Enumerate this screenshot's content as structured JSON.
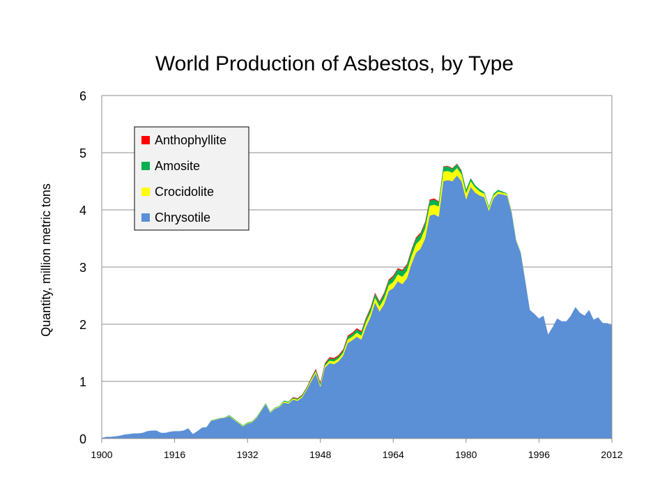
{
  "chart_data": {
    "type": "area",
    "stacked": true,
    "title": "World Production of Asbestos, by Type",
    "xlabel": "",
    "ylabel": "Quantity, million metric tons",
    "xlim": [
      1900,
      2012
    ],
    "ylim": [
      0,
      6
    ],
    "x_ticks": [
      1900,
      1916,
      1932,
      1948,
      1964,
      1980,
      1996,
      2012
    ],
    "y_ticks": [
      0,
      1,
      2,
      3,
      4,
      5,
      6
    ],
    "grid": "horizontal",
    "legend_position": "top-left",
    "x": [
      1900,
      1901,
      1902,
      1903,
      1904,
      1905,
      1906,
      1907,
      1908,
      1909,
      1910,
      1911,
      1912,
      1913,
      1914,
      1915,
      1916,
      1917,
      1918,
      1919,
      1920,
      1921,
      1922,
      1923,
      1924,
      1925,
      1926,
      1927,
      1928,
      1929,
      1930,
      1931,
      1932,
      1933,
      1934,
      1935,
      1936,
      1937,
      1938,
      1939,
      1940,
      1941,
      1942,
      1943,
      1944,
      1945,
      1946,
      1947,
      1948,
      1949,
      1950,
      1951,
      1952,
      1953,
      1954,
      1955,
      1956,
      1957,
      1958,
      1959,
      1960,
      1961,
      1962,
      1963,
      1964,
      1965,
      1966,
      1967,
      1968,
      1969,
      1970,
      1971,
      1972,
      1973,
      1974,
      1975,
      1976,
      1977,
      1978,
      1979,
      1980,
      1981,
      1982,
      1983,
      1984,
      1985,
      1986,
      1987,
      1988,
      1989,
      1990,
      1991,
      1992,
      1993,
      1994,
      1995,
      1996,
      1997,
      1998,
      1999,
      2000,
      2001,
      2002,
      2003,
      2004,
      2005,
      2006,
      2007,
      2008,
      2009,
      2010,
      2011,
      2012
    ],
    "series": [
      {
        "name": "Chrysotile",
        "color": "#5B8FD6",
        "values": [
          0.01,
          0.03,
          0.03,
          0.04,
          0.05,
          0.07,
          0.08,
          0.09,
          0.09,
          0.1,
          0.13,
          0.14,
          0.14,
          0.1,
          0.1,
          0.12,
          0.13,
          0.13,
          0.14,
          0.18,
          0.08,
          0.13,
          0.19,
          0.2,
          0.31,
          0.33,
          0.35,
          0.36,
          0.39,
          0.33,
          0.27,
          0.21,
          0.26,
          0.28,
          0.36,
          0.48,
          0.6,
          0.45,
          0.52,
          0.55,
          0.63,
          0.61,
          0.68,
          0.66,
          0.72,
          0.85,
          1.0,
          1.14,
          0.9,
          1.24,
          1.32,
          1.3,
          1.35,
          1.45,
          1.67,
          1.72,
          1.78,
          1.73,
          1.95,
          2.12,
          2.38,
          2.22,
          2.35,
          2.58,
          2.63,
          2.75,
          2.7,
          2.8,
          3.05,
          3.25,
          3.32,
          3.5,
          3.9,
          3.92,
          3.88,
          4.5,
          4.52,
          4.5,
          4.6,
          4.5,
          4.18,
          4.4,
          4.3,
          4.25,
          4.22,
          3.98,
          4.2,
          4.28,
          4.27,
          4.25,
          3.95,
          3.45,
          3.25,
          2.75,
          2.25,
          2.18,
          2.1,
          2.15,
          1.82,
          1.95,
          2.1,
          2.05,
          2.05,
          2.15,
          2.3,
          2.2,
          2.15,
          2.25,
          2.08,
          2.12,
          2.02,
          2.02,
          1.98
        ]
      },
      {
        "name": "Crocidolite",
        "color": "#FFFF00",
        "values": [
          0,
          0,
          0,
          0,
          0,
          0,
          0,
          0,
          0,
          0,
          0,
          0,
          0,
          0,
          0,
          0,
          0,
          0,
          0,
          0,
          0,
          0,
          0,
          0,
          0.005,
          0.005,
          0.005,
          0.005,
          0.01,
          0.01,
          0.01,
          0.01,
          0.01,
          0.01,
          0.01,
          0.01,
          0.01,
          0.01,
          0.01,
          0.01,
          0.02,
          0.02,
          0.02,
          0.02,
          0.02,
          0.02,
          0.03,
          0.03,
          0.03,
          0.03,
          0.04,
          0.05,
          0.05,
          0.05,
          0.06,
          0.06,
          0.07,
          0.07,
          0.08,
          0.08,
          0.08,
          0.09,
          0.1,
          0.1,
          0.11,
          0.12,
          0.13,
          0.13,
          0.14,
          0.15,
          0.16,
          0.17,
          0.17,
          0.17,
          0.18,
          0.17,
          0.16,
          0.15,
          0.13,
          0.12,
          0.11,
          0.1,
          0.09,
          0.07,
          0.06,
          0.05,
          0.05,
          0.04,
          0.03,
          0.03,
          0.02,
          0.01,
          0.01,
          0.005,
          0,
          0,
          0,
          0,
          0,
          0,
          0,
          0,
          0,
          0,
          0,
          0,
          0,
          0,
          0,
          0,
          0,
          0,
          0
        ]
      },
      {
        "name": "Amosite",
        "color": "#00B050",
        "values": [
          0,
          0,
          0,
          0,
          0,
          0,
          0,
          0,
          0,
          0,
          0,
          0,
          0,
          0,
          0,
          0,
          0,
          0,
          0,
          0,
          0,
          0,
          0,
          0,
          0.005,
          0.005,
          0.005,
          0.005,
          0.01,
          0.01,
          0.01,
          0.01,
          0.01,
          0.01,
          0.01,
          0.01,
          0.01,
          0.01,
          0.01,
          0.01,
          0.015,
          0.015,
          0.015,
          0.015,
          0.02,
          0.02,
          0.02,
          0.03,
          0.03,
          0.03,
          0.04,
          0.04,
          0.04,
          0.04,
          0.05,
          0.05,
          0.06,
          0.06,
          0.06,
          0.07,
          0.07,
          0.07,
          0.08,
          0.08,
          0.09,
          0.09,
          0.1,
          0.1,
          0.1,
          0.1,
          0.1,
          0.1,
          0.09,
          0.09,
          0.08,
          0.08,
          0.08,
          0.07,
          0.07,
          0.06,
          0.06,
          0.05,
          0.04,
          0.04,
          0.03,
          0.03,
          0.03,
          0.03,
          0.02,
          0.01,
          0.01,
          0.01,
          0.005,
          0.005,
          0,
          0,
          0,
          0,
          0,
          0,
          0,
          0,
          0,
          0,
          0,
          0,
          0,
          0,
          0,
          0,
          0,
          0,
          0
        ]
      },
      {
        "name": "Anthophyllite",
        "color": "#FF0000",
        "values": [
          0,
          0,
          0,
          0,
          0,
          0,
          0,
          0,
          0,
          0,
          0,
          0,
          0,
          0,
          0,
          0,
          0,
          0,
          0,
          0,
          0,
          0,
          0,
          0,
          0,
          0,
          0,
          0,
          0,
          0,
          0,
          0,
          0,
          0,
          0,
          0,
          0,
          0,
          0,
          0,
          0,
          0,
          0.01,
          0.01,
          0.01,
          0.01,
          0.015,
          0.02,
          0.02,
          0.02,
          0.02,
          0.02,
          0.02,
          0.02,
          0.02,
          0.02,
          0.02,
          0.02,
          0.02,
          0.02,
          0.02,
          0.02,
          0.02,
          0.02,
          0.02,
          0.02,
          0.02,
          0.02,
          0.02,
          0.02,
          0.02,
          0.02,
          0.02,
          0.02,
          0.01,
          0.01,
          0.01,
          0.01,
          0.01,
          0.01,
          0.005,
          0.005,
          0,
          0,
          0,
          0,
          0,
          0,
          0,
          0,
          0,
          0,
          0,
          0,
          0,
          0,
          0,
          0,
          0,
          0,
          0,
          0,
          0,
          0,
          0,
          0,
          0,
          0,
          0,
          0,
          0,
          0,
          0
        ]
      }
    ],
    "legend_order": [
      "Anthophyllite",
      "Amosite",
      "Crocidolite",
      "Chrysotile"
    ]
  }
}
